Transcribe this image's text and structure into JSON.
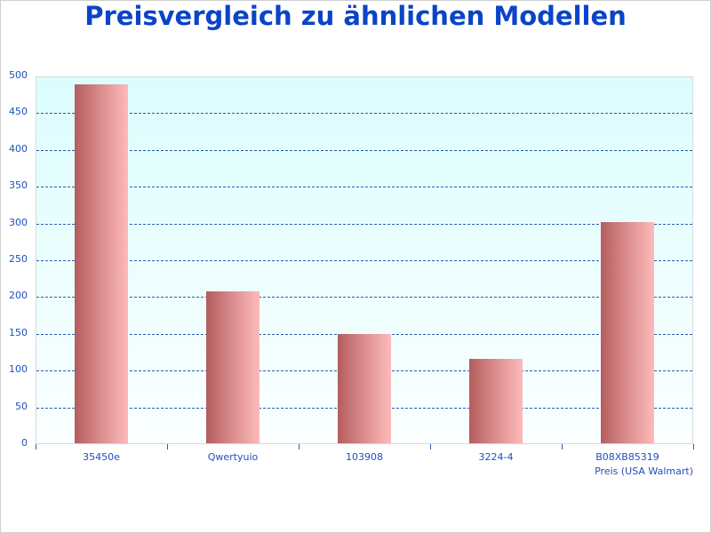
{
  "chart_data": {
    "type": "bar",
    "title": "Preisvergleich zu ähnlichen Modellen",
    "xlabel": "Preis (USA Walmart)",
    "ylabel": "",
    "categories": [
      "35450e",
      "Qwertyuio",
      "103908",
      "3224-4",
      "B08XB85319"
    ],
    "series": [
      {
        "name": "Preis (USA Walmart)",
        "values": [
          489,
          208,
          150,
          116,
          302
        ]
      }
    ],
    "ylim": [
      0,
      500
    ],
    "yticks": [
      0,
      50,
      100,
      150,
      200,
      250,
      300,
      350,
      400,
      450,
      500
    ],
    "grid": true,
    "legend": "none"
  },
  "colors": {
    "title": "#0a44c8",
    "axis_text": "#1f4fbf",
    "gridline": "#2a5db0",
    "bar_dark": "#b45c5e",
    "bar_light": "#fdbaba",
    "plot_bg_top": "#dcfdfd",
    "plot_bg_bottom": "#fbffff"
  }
}
